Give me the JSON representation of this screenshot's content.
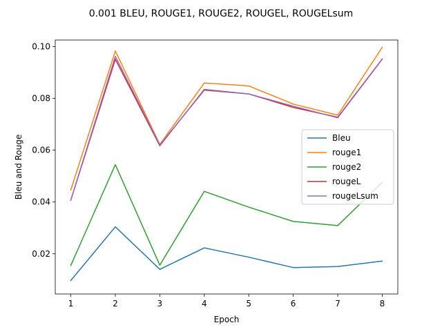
{
  "chart_data": {
    "type": "line",
    "title": "0.001 BLEU, ROUGE1, ROUGE2, ROUGEL, ROUGELsum",
    "xlabel": "Epoch",
    "ylabel": "Bleu and Rouge",
    "x": [
      1,
      2,
      3,
      4,
      5,
      6,
      7,
      8
    ],
    "xlim": [
      0.65,
      8.35
    ],
    "ylim": [
      0.0045,
      0.1025
    ],
    "xticks": [
      1,
      2,
      3,
      4,
      5,
      6,
      7,
      8
    ],
    "xtick_labels": [
      "1",
      "2",
      "3",
      "4",
      "5",
      "6",
      "7",
      "8"
    ],
    "yticks": [
      0.02,
      0.04,
      0.06,
      0.08,
      0.1
    ],
    "ytick_labels": [
      "0.02",
      "0.04",
      "0.06",
      "0.08",
      "0.10"
    ],
    "grid": false,
    "legend": "center-right",
    "series": [
      {
        "name": "Bleu",
        "color": "#1f77b4",
        "values": [
          0.0097,
          0.0304,
          0.014,
          0.0223,
          0.0187,
          0.0147,
          0.0151,
          0.0172
        ]
      },
      {
        "name": "rouge1",
        "color": "#ff7f0e",
        "values": [
          0.0446,
          0.0983,
          0.0622,
          0.0859,
          0.0848,
          0.0778,
          0.0735,
          0.0997
        ]
      },
      {
        "name": "rouge2",
        "color": "#2ca02c",
        "values": [
          0.0155,
          0.0544,
          0.0156,
          0.0441,
          0.038,
          0.0325,
          0.0309,
          0.0476
        ]
      },
      {
        "name": "rougeL",
        "color": "#d62728",
        "values": [
          0.0407,
          0.0951,
          0.0617,
          0.0834,
          0.0817,
          0.0765,
          0.0727,
          0.0952
        ]
      },
      {
        "name": "rougeLsum",
        "color": "#9467bd",
        "values": [
          0.0407,
          0.0962,
          0.062,
          0.0831,
          0.0817,
          0.077,
          0.0725,
          0.0951
        ]
      }
    ]
  }
}
